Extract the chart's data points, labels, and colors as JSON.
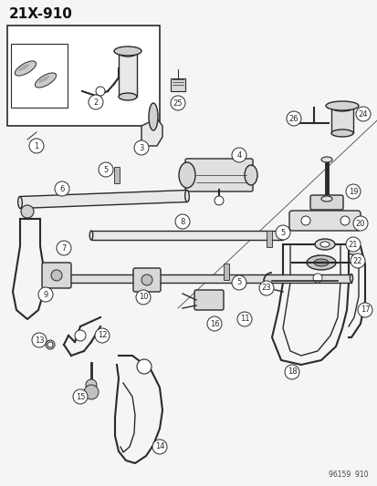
{
  "title": "21X-910",
  "footer": "96159  910",
  "bg_color": "#f5f5f5",
  "line_color": "#2a2a2a",
  "text_color": "#111111",
  "fig_width": 4.14,
  "fig_height": 5.33,
  "dpi": 100
}
